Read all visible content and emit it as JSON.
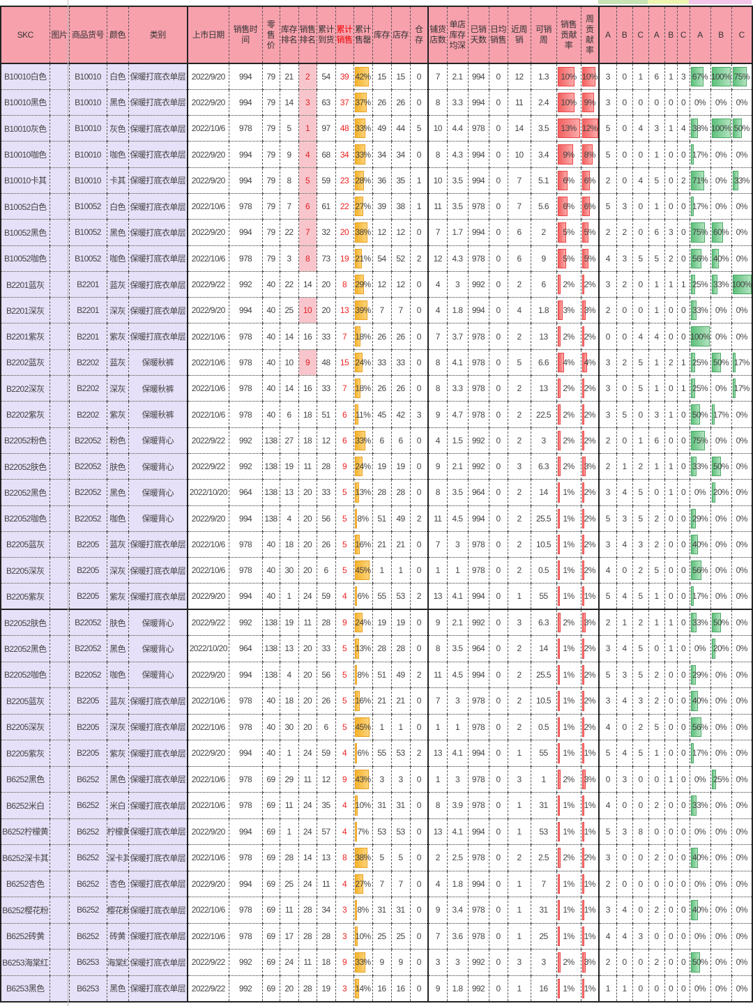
{
  "colors": {
    "header": "#f7a1ad",
    "skc_bg": "#e6e0f8",
    "sales_rank_highlight": "#f9c5cc",
    "sellthrough_bar": "#f5b22a",
    "contribution_bar": "#f26060",
    "ratio_bar": "#5cc07a",
    "group1": "#c9e4b4",
    "group2": "#eef5b0",
    "group3": "#f4c6ea"
  },
  "header": [
    "SKC",
    "图片",
    "商品货号",
    "颜色",
    "类别",
    "上市日期",
    "销售时间",
    "零售价",
    "库存排名",
    "销售排名",
    "累计到货",
    "累计销售",
    "累计售罄",
    "库存",
    "店存",
    "仓存",
    "铺货店数",
    "单店库存均深",
    "已销天数",
    "日均销售",
    "近周销",
    "可销周",
    "销售贡献率",
    "周贡献率",
    "A",
    "B",
    "C",
    "A",
    "B",
    "C",
    "A",
    "B",
    "C"
  ],
  "rows": [
    [
      "B10010白色",
      "",
      "B10010",
      "白色",
      "保暖打底衣单层",
      "2022/9/20",
      "994",
      "79",
      "21",
      "2",
      "54",
      "39",
      "42%",
      "15",
      "15",
      "0",
      "7",
      "2.1",
      "994",
      "0",
      "12",
      "1.3",
      "10%",
      "10%",
      "3",
      "0",
      "1",
      "6",
      "1",
      "3",
      "67%",
      "100%",
      "75%"
    ],
    [
      "B10010黑色",
      "",
      "B10010",
      "黑色",
      "保暖打底衣单层",
      "2022/9/20",
      "994",
      "79",
      "14",
      "3",
      "63",
      "37",
      "37%",
      "26",
      "26",
      "0",
      "8",
      "3.3",
      "994",
      "0",
      "11",
      "2.4",
      "10%",
      "9%",
      "3",
      "0",
      "0",
      "0",
      "0",
      "0",
      "0%",
      "0%",
      "0%"
    ],
    [
      "B10010灰色",
      "",
      "B10010",
      "灰色",
      "保暖打底衣单层",
      "2022/10/6",
      "978",
      "79",
      "5",
      "1",
      "97",
      "48",
      "33%",
      "49",
      "44",
      "5",
      "10",
      "4.4",
      "978",
      "0",
      "14",
      "3.5",
      "13%",
      "12%",
      "5",
      "0",
      "4",
      "3",
      "1",
      "4",
      "38%",
      "100%",
      "50%"
    ],
    [
      "B10010咖色",
      "",
      "B10010",
      "咖色",
      "保暖打底衣单层",
      "2022/9/20",
      "994",
      "79",
      "9",
      "4",
      "68",
      "34",
      "33%",
      "34",
      "34",
      "0",
      "8",
      "4.3",
      "994",
      "0",
      "10",
      "3.4",
      "9%",
      "8%",
      "5",
      "0",
      "0",
      "1",
      "0",
      "0",
      "17%",
      "0%",
      "0%"
    ],
    [
      "B10010卡其",
      "",
      "B10010",
      "卡其",
      "保暖打底衣单层",
      "2022/9/20",
      "994",
      "79",
      "8",
      "5",
      "59",
      "23",
      "28%",
      "36",
      "35",
      "1",
      "10",
      "3.5",
      "994",
      "0",
      "7",
      "5.1",
      "6%",
      "6%",
      "2",
      "0",
      "4",
      "5",
      "0",
      "2",
      "71%",
      "0%",
      "33%"
    ],
    [
      "B10052白色",
      "",
      "B10052",
      "白色",
      "保暖打底衣单层",
      "2022/10/6",
      "978",
      "79",
      "7",
      "6",
      "61",
      "22",
      "27%",
      "39",
      "38",
      "1",
      "11",
      "3.5",
      "978",
      "0",
      "7",
      "5.6",
      "6%",
      "6%",
      "5",
      "3",
      "0",
      "1",
      "0",
      "0",
      "17%",
      "0%",
      "0%"
    ],
    [
      "B10052黑色",
      "",
      "B10052",
      "黑色",
      "保暖打底衣单层",
      "2022/9/20",
      "994",
      "79",
      "22",
      "7",
      "32",
      "20",
      "38%",
      "12",
      "12",
      "0",
      "7",
      "1.7",
      "994",
      "0",
      "6",
      "2",
      "5%",
      "5%",
      "2",
      "2",
      "0",
      "6",
      "3",
      "0",
      "75%",
      "60%",
      "0%"
    ],
    [
      "B10052咖色",
      "",
      "B10052",
      "咖色",
      "保暖打底衣单层",
      "2022/10/6",
      "978",
      "79",
      "3",
      "8",
      "73",
      "19",
      "21%",
      "54",
      "52",
      "2",
      "12",
      "4.3",
      "978",
      "0",
      "6",
      "9",
      "5%",
      "5%",
      "4",
      "3",
      "5",
      "5",
      "2",
      "0",
      "56%",
      "40%",
      "0%"
    ],
    [
      "B2201蓝灰",
      "",
      "B2201",
      "蓝灰",
      "保暖打底衣单层",
      "2022/9/22",
      "992",
      "40",
      "22",
      "14",
      "20",
      "8",
      "29%",
      "12",
      "12",
      "0",
      "4",
      "3",
      "992",
      "0",
      "2",
      "6",
      "2%",
      "2%",
      "3",
      "2",
      "0",
      "1",
      "1",
      "1",
      "25%",
      "33%",
      "100%"
    ],
    [
      "B2201深灰",
      "",
      "B2201",
      "深灰",
      "保暖打底衣单层",
      "2022/9/20",
      "994",
      "40",
      "25",
      "10",
      "20",
      "13",
      "39%",
      "7",
      "7",
      "0",
      "4",
      "1.8",
      "994",
      "0",
      "4",
      "1.8",
      "3%",
      "3%",
      "2",
      "0",
      "0",
      "1",
      "0",
      "0",
      "33%",
      "0%",
      "0%"
    ],
    [
      "B2201紫灰",
      "",
      "B2201",
      "紫灰",
      "保暖打底衣单层",
      "2022/10/6",
      "978",
      "40",
      "14",
      "16",
      "33",
      "7",
      "18%",
      "26",
      "26",
      "0",
      "7",
      "3.7",
      "978",
      "0",
      "2",
      "13",
      "2%",
      "2%",
      "0",
      "0",
      "4",
      "4",
      "0",
      "0",
      "100%",
      "0%",
      "0%"
    ],
    [
      "B2202蓝灰",
      "",
      "B2202",
      "蓝灰",
      "保暖秋裤",
      "2022/10/6",
      "978",
      "40",
      "10",
      "9",
      "48",
      "15",
      "24%",
      "33",
      "33",
      "0",
      "8",
      "4.1",
      "978",
      "0",
      "5",
      "6.6",
      "4%",
      "4%",
      "3",
      "2",
      "5",
      "1",
      "2",
      "1",
      "25%",
      "50%",
      "17%"
    ],
    [
      "B2202深灰",
      "",
      "B2202",
      "深灰",
      "保暖秋裤",
      "2022/10/6",
      "978",
      "40",
      "14",
      "16",
      "33",
      "7",
      "18%",
      "26",
      "26",
      "0",
      "8",
      "3.3",
      "978",
      "0",
      "2",
      "13",
      "2%",
      "2%",
      "3",
      "0",
      "5",
      "1",
      "0",
      "1",
      "25%",
      "0%",
      "17%"
    ],
    [
      "B2202紫灰",
      "",
      "B2202",
      "紫灰",
      "保暖秋裤",
      "2022/10/6",
      "978",
      "40",
      "6",
      "18",
      "51",
      "6",
      "11%",
      "45",
      "42",
      "3",
      "9",
      "4.7",
      "978",
      "0",
      "2",
      "22.5",
      "2%",
      "2%",
      "3",
      "5",
      "0",
      "3",
      "1",
      "0",
      "50%",
      "17%",
      "0%"
    ],
    [
      "B22052粉色",
      "",
      "B22052",
      "粉色",
      "保暖背心",
      "2022/9/22",
      "992",
      "138",
      "27",
      "18",
      "12",
      "6",
      "33%",
      "6",
      "6",
      "0",
      "4",
      "1.5",
      "992",
      "0",
      "2",
      "3",
      "2%",
      "2%",
      "2",
      "0",
      "1",
      "6",
      "0",
      "0",
      "75%",
      "0%",
      "0%"
    ],
    [
      "B22052肤色",
      "",
      "B22052",
      "肤色",
      "保暖背心",
      "2022/9/22",
      "992",
      "138",
      "19",
      "11",
      "28",
      "9",
      "24%",
      "19",
      "19",
      "0",
      "9",
      "2.1",
      "992",
      "0",
      "3",
      "6.3",
      "2%",
      "3%",
      "2",
      "1",
      "2",
      "1",
      "1",
      "0",
      "33%",
      "50%",
      "0%"
    ],
    [
      "B22052黑色",
      "",
      "B22052",
      "黑色",
      "保暖背心",
      "2022/10/20",
      "964",
      "138",
      "13",
      "20",
      "33",
      "5",
      "13%",
      "28",
      "28",
      "0",
      "8",
      "3.5",
      "964",
      "0",
      "2",
      "14",
      "1%",
      "2%",
      "3",
      "4",
      "5",
      "0",
      "1",
      "0",
      "0%",
      "20%",
      "0%"
    ],
    [
      "B22052咖色",
      "",
      "B22052",
      "咖色",
      "保暖背心",
      "2022/9/20",
      "994",
      "138",
      "4",
      "20",
      "56",
      "5",
      "8%",
      "51",
      "49",
      "2",
      "11",
      "4.5",
      "994",
      "0",
      "2",
      "25.5",
      "1%",
      "2%",
      "5",
      "3",
      "5",
      "2",
      "0",
      "0",
      "29%",
      "0%",
      "0%"
    ],
    [
      "B2205蓝灰",
      "",
      "B2205",
      "蓝灰",
      "保暖打底衣单层",
      "2022/10/6",
      "978",
      "40",
      "18",
      "20",
      "26",
      "5",
      "16%",
      "21",
      "21",
      "0",
      "7",
      "3",
      "978",
      "0",
      "2",
      "10.5",
      "1%",
      "2%",
      "3",
      "4",
      "3",
      "2",
      "0",
      "0",
      "40%",
      "0%",
      "0%"
    ],
    [
      "B2205深灰",
      "",
      "B2205",
      "深灰",
      "保暖打底衣单层",
      "2022/10/6",
      "978",
      "40",
      "30",
      "20",
      "6",
      "5",
      "45%",
      "1",
      "1",
      "0",
      "1",
      "1",
      "978",
      "0",
      "2",
      "0.5",
      "1%",
      "2%",
      "4",
      "0",
      "2",
      "5",
      "0",
      "0",
      "56%",
      "0%",
      "0%"
    ],
    [
      "B2205紫灰",
      "",
      "B2205",
      "紫灰",
      "保暖打底衣单层",
      "2022/9/20",
      "994",
      "40",
      "1",
      "24",
      "59",
      "4",
      "6%",
      "55",
      "53",
      "2",
      "13",
      "4.1",
      "994",
      "0",
      "1",
      "55",
      "1%",
      "1%",
      "5",
      "4",
      "5",
      "1",
      "0",
      "0",
      "17%",
      "0%",
      "0%"
    ],
    [
      "B22052肤色",
      "",
      "B22052",
      "肤色",
      "保暖背心",
      "2022/9/22",
      "992",
      "138",
      "19",
      "11",
      "28",
      "9",
      "24%",
      "19",
      "19",
      "0",
      "9",
      "2.1",
      "992",
      "0",
      "3",
      "6.3",
      "2%",
      "3%",
      "2",
      "1",
      "2",
      "1",
      "1",
      "0",
      "33%",
      "50%",
      "0%"
    ],
    [
      "B22052黑色",
      "",
      "B22052",
      "黑色",
      "保暖背心",
      "2022/10/20",
      "964",
      "138",
      "13",
      "20",
      "33",
      "5",
      "13%",
      "28",
      "28",
      "0",
      "8",
      "3.5",
      "964",
      "0",
      "2",
      "14",
      "1%",
      "2%",
      "3",
      "4",
      "5",
      "0",
      "1",
      "0",
      "0%",
      "20%",
      "0%"
    ],
    [
      "B22052咖色",
      "",
      "B22052",
      "咖色",
      "保暖背心",
      "2022/9/20",
      "994",
      "138",
      "4",
      "20",
      "56",
      "5",
      "8%",
      "51",
      "49",
      "2",
      "11",
      "4.5",
      "994",
      "0",
      "2",
      "25.5",
      "1%",
      "2%",
      "5",
      "3",
      "5",
      "2",
      "0",
      "0",
      "29%",
      "0%",
      "0%"
    ],
    [
      "B2205蓝灰",
      "",
      "B2205",
      "蓝灰",
      "保暖打底衣单层",
      "2022/10/6",
      "978",
      "40",
      "18",
      "20",
      "26",
      "5",
      "16%",
      "21",
      "21",
      "0",
      "7",
      "3",
      "978",
      "0",
      "2",
      "10.5",
      "1%",
      "2%",
      "3",
      "4",
      "3",
      "2",
      "0",
      "0",
      "40%",
      "0%",
      "0%"
    ],
    [
      "B2205深灰",
      "",
      "B2205",
      "深灰",
      "保暖打底衣单层",
      "2022/10/6",
      "978",
      "40",
      "30",
      "20",
      "6",
      "5",
      "45%",
      "1",
      "1",
      "0",
      "1",
      "1",
      "978",
      "0",
      "2",
      "0.5",
      "1%",
      "2%",
      "4",
      "0",
      "2",
      "5",
      "0",
      "0",
      "56%",
      "0%",
      "0%"
    ],
    [
      "B2205紫灰",
      "",
      "B2205",
      "紫灰",
      "保暖打底衣单层",
      "2022/9/20",
      "994",
      "40",
      "1",
      "24",
      "59",
      "4",
      "6%",
      "55",
      "53",
      "2",
      "13",
      "4.1",
      "994",
      "0",
      "1",
      "55",
      "1%",
      "1%",
      "5",
      "4",
      "5",
      "1",
      "0",
      "0",
      "17%",
      "0%",
      "0%"
    ],
    [
      "B6252黑色",
      "",
      "B6252",
      "黑色",
      "保暖打底衣单层",
      "2022/10/6",
      "978",
      "69",
      "29",
      "11",
      "12",
      "9",
      "43%",
      "3",
      "3",
      "0",
      "1",
      "3",
      "978",
      "0",
      "3",
      "1",
      "2%",
      "3%",
      "0",
      "3",
      "0",
      "0",
      "1",
      "0",
      "0%",
      "25%",
      "0%"
    ],
    [
      "B6252米白",
      "",
      "B6252",
      "米白",
      "保暖打底衣单层",
      "2022/10/6",
      "978",
      "69",
      "11",
      "24",
      "35",
      "4",
      "10%",
      "31",
      "31",
      "0",
      "8",
      "3.9",
      "978",
      "0",
      "1",
      "31",
      "1%",
      "1%",
      "4",
      "0",
      "0",
      "2",
      "0",
      "0",
      "33%",
      "0%",
      "0%"
    ],
    [
      "B6252柠檬黄",
      "",
      "B6252",
      "柠檬黄",
      "保暖打底衣单层",
      "2022/9/20",
      "994",
      "69",
      "1",
      "24",
      "57",
      "4",
      "7%",
      "53",
      "53",
      "0",
      "13",
      "4.1",
      "994",
      "0",
      "1",
      "53",
      "1%",
      "1%",
      "5",
      "3",
      "8",
      "0",
      "0",
      "0",
      "0%",
      "0%",
      "0%"
    ],
    [
      "B6252深卡其",
      "",
      "B6252",
      "深卡其",
      "保暖打底衣单层",
      "2022/10/6",
      "978",
      "69",
      "28",
      "14",
      "13",
      "8",
      "38%",
      "5",
      "5",
      "0",
      "2",
      "2.5",
      "978",
      "0",
      "2",
      "2.5",
      "2%",
      "2%",
      "3",
      "0",
      "0",
      "2",
      "0",
      "0",
      "40%",
      "0%",
      "0%"
    ],
    [
      "B6252杏色",
      "",
      "B6252",
      "杏色",
      "保暖打底衣单层",
      "2022/9/20",
      "994",
      "69",
      "25",
      "24",
      "11",
      "4",
      "27%",
      "7",
      "7",
      "0",
      "4",
      "1.8",
      "994",
      "0",
      "1",
      "7",
      "1%",
      "1%",
      "2",
      "0",
      "0",
      "0",
      "0",
      "0",
      "0%",
      "0%",
      "0%"
    ],
    [
      "B6252樱花粉",
      "",
      "B6252",
      "樱花粉",
      "保暖打底衣单层",
      "2022/10/6",
      "978",
      "69",
      "11",
      "28",
      "34",
      "3",
      "8%",
      "31",
      "31",
      "0",
      "9",
      "3.4",
      "978",
      "0",
      "1",
      "31",
      "1%",
      "1%",
      "3",
      "4",
      "0",
      "2",
      "0",
      "0",
      "40%",
      "0%",
      "0%"
    ],
    [
      "B6252砖黄",
      "",
      "B6252",
      "砖黄",
      "保暖打底衣单层",
      "2022/10/6",
      "978",
      "69",
      "17",
      "28",
      "28",
      "3",
      "10%",
      "25",
      "25",
      "0",
      "7",
      "3.6",
      "978",
      "0",
      "1",
      "25",
      "1%",
      "1%",
      "4",
      "4",
      "3",
      "0",
      "0",
      "0",
      "0%",
      "0%",
      "0%"
    ],
    [
      "B6253海棠红",
      "",
      "B6253",
      "海棠红",
      "保暖打底衣单层",
      "2022/9/22",
      "992",
      "69",
      "24",
      "11",
      "18",
      "9",
      "33%",
      "9",
      "9",
      "0",
      "3",
      "3",
      "992",
      "0",
      "3",
      "3",
      "2%",
      "3%",
      "2",
      "0",
      "0",
      "2",
      "0",
      "0",
      "50%",
      "0%",
      "0%"
    ],
    [
      "B6253黑色",
      "",
      "B6253",
      "黑色",
      "保暖打底衣单层",
      "2022/9/22",
      "992",
      "69",
      "20",
      "28",
      "19",
      "3",
      "14%",
      "16",
      "16",
      "0",
      "9",
      "1.8",
      "992",
      "0",
      "1",
      "16",
      "1%",
      "1%",
      "1",
      "1",
      "0",
      "0",
      "0",
      "0",
      "0%",
      "0%",
      "0%"
    ]
  ]
}
